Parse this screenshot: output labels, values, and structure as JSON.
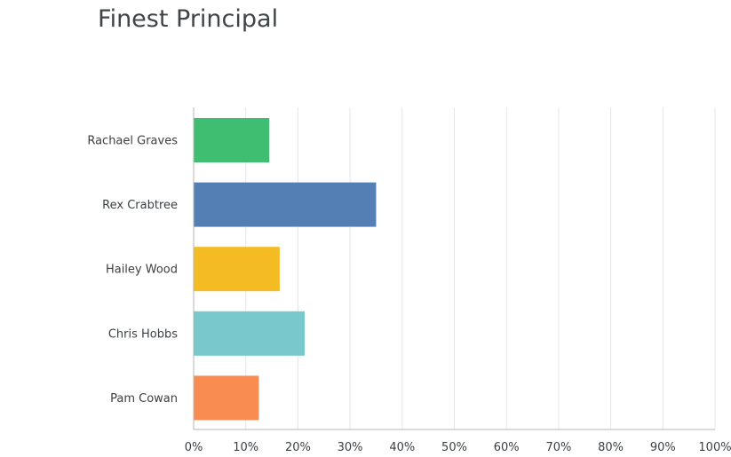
{
  "chart_data": {
    "type": "bar",
    "orientation": "horizontal",
    "title": "Finest Principal",
    "xlabel": "",
    "ylabel": "",
    "categories": [
      "Rachael Graves",
      "Rex Crabtree",
      "Hailey Wood",
      "Chris Hobbs",
      "Pam Cowan"
    ],
    "values": [
      14.5,
      35,
      16.5,
      21.3,
      12.5
    ],
    "value_unit": "percent",
    "bar_colors": [
      "#3fbe71",
      "#537fb5",
      "#f5bb23",
      "#78c8cc",
      "#f98c50"
    ],
    "xlim": [
      0,
      100
    ],
    "x_ticks": [
      "0%",
      "10%",
      "20%",
      "30%",
      "40%",
      "50%",
      "60%",
      "70%",
      "80%",
      "90%",
      "100%"
    ],
    "grid": "vertical",
    "legend": "none"
  }
}
